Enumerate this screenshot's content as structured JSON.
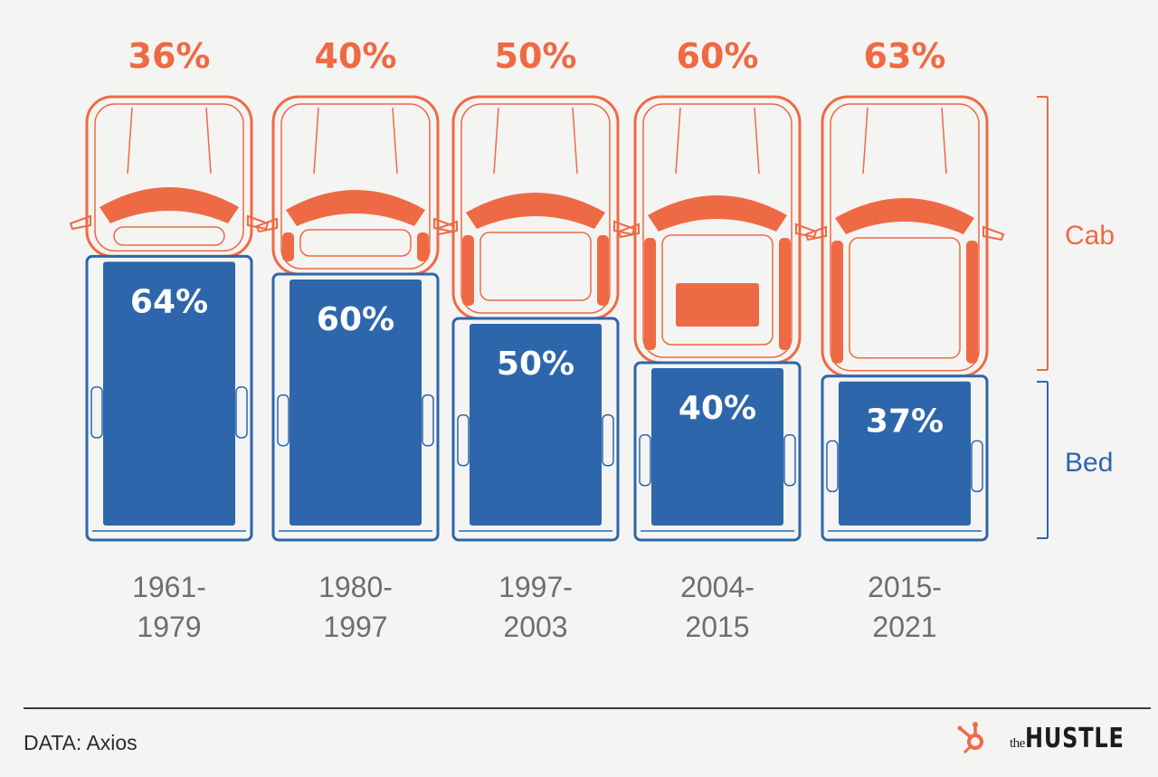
{
  "chart_data": {
    "type": "bar",
    "categories": [
      "1961-1979",
      "1980-1997",
      "1997-2003",
      "2004-2015",
      "2015-2021"
    ],
    "period_lines": [
      [
        "1961-",
        "1979"
      ],
      [
        "1980-",
        "1997"
      ],
      [
        "1997-",
        "2003"
      ],
      [
        "2004-",
        "2015"
      ],
      [
        "2015-",
        "2021"
      ]
    ],
    "series": [
      {
        "name": "Cab",
        "values": [
          36,
          40,
          50,
          60,
          63
        ],
        "labels": [
          "36%",
          "40%",
          "50%",
          "60%",
          "63%"
        ],
        "color": "#ee6a45"
      },
      {
        "name": "Bed",
        "values": [
          64,
          60,
          50,
          40,
          37
        ],
        "labels": [
          "64%",
          "60%",
          "50%",
          "40%",
          "37%"
        ],
        "color": "#2d66ab"
      }
    ],
    "legend": {
      "cab": "Cab",
      "bed": "Bed",
      "placement": "right"
    },
    "stacked": true
  },
  "footer": {
    "source": "DATA: Axios",
    "brand_the": "the",
    "brand_name": "HUSTLE",
    "brand_icon": "hubspot-sprocket-icon"
  },
  "colors": {
    "cab": "#ee6a45",
    "bed": "#2d66ab",
    "period_text": "#6e6e6e",
    "background": "#f4f4f2"
  }
}
